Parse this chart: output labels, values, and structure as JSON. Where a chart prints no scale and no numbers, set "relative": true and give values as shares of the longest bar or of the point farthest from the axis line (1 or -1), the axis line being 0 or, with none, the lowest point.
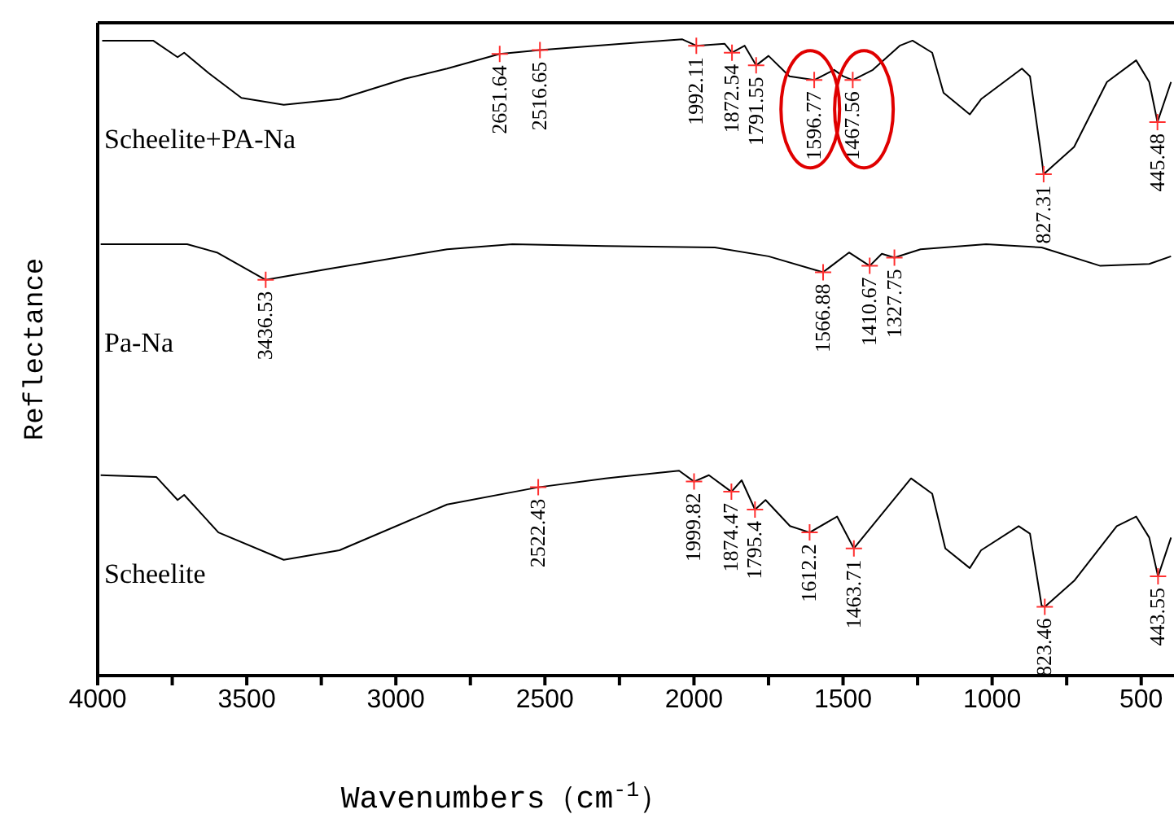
{
  "chart_data": {
    "type": "line",
    "relative": true,
    "xlabel": "Wavenumbers（cm$^{-1}$）",
    "ylabel": "Reflectance",
    "xlim": [
      4000,
      390
    ],
    "xticks": [
      4000,
      {
        "value": 3750,
        "label": null
      },
      3500,
      {
        "value": 3250,
        "label": null
      },
      3000,
      {
        "value": 2750,
        "label": null
      },
      2500,
      {
        "value": 2250,
        "label": null
      },
      2000,
      {
        "value": 1750,
        "label": null
      },
      1500,
      {
        "value": 1250,
        "label": null
      },
      1000,
      {
        "value": 750,
        "label": null
      },
      500
    ],
    "grid": false,
    "legend": false,
    "line_style": "solid",
    "marker": "none",
    "series": [
      {
        "name": "Scheelite+PA-Na",
        "color": "#000000",
        "x": [
          3985,
          3814,
          3732,
          3710,
          3628,
          3518,
          3376,
          3189,
          2970,
          2828,
          2651.64,
          2516.65,
          2242,
          2039,
          1992.11,
          1897,
          1872.54,
          1830,
          1791.55,
          1750,
          1680,
          1596.77,
          1530,
          1500,
          1467.56,
          1400,
          1310,
          1267,
          1201,
          1163,
          1075,
          1037,
          900,
          873,
          834,
          827.31,
          725,
          615,
          517,
          473,
          445.48,
          400
        ],
        "values": [
          0.998,
          0.998,
          0.972,
          0.979,
          0.947,
          0.908,
          0.897,
          0.906,
          0.938,
          0.954,
          0.977,
          0.983,
          0.993,
          1,
          0.99,
          0.993,
          0.979,
          0.99,
          0.959,
          0.974,
          0.942,
          0.936,
          0.952,
          0.942,
          0.936,
          0.952,
          0.99,
          0.998,
          0.979,
          0.916,
          0.882,
          0.906,
          0.954,
          0.942,
          0.813,
          0.788,
          0.831,
          0.933,
          0.967,
          0.933,
          0.87,
          0.933
        ]
      },
      {
        "name": "Pa-Na",
        "color": "#000000",
        "x": [
          3990,
          3700,
          3600,
          3436.53,
          3228,
          2828,
          2609,
          2297,
          1930,
          1750,
          1566.88,
          1480,
          1410.67,
          1370,
          1327.75,
          1240,
          1020,
          834,
          637,
          473,
          400
        ],
        "values": [
          0.678,
          0.678,
          0.665,
          0.622,
          0.639,
          0.67,
          0.678,
          0.675,
          0.673,
          0.659,
          0.634,
          0.665,
          0.644,
          0.663,
          0.657,
          0.67,
          0.678,
          0.673,
          0.644,
          0.647,
          0.659
        ]
      },
      {
        "name": "Scheelite",
        "color": "#000000",
        "x": [
          3990,
          3803,
          3732,
          3710,
          3595,
          3376,
          3189,
          2828,
          2522.43,
          2297,
          2050,
          1999.82,
          1950,
          1874.47,
          1840,
          1795.4,
          1760,
          1678,
          1612.2,
          1520,
          1463.71,
          1272,
          1201,
          1157,
          1075,
          1037,
          911,
          873,
          834,
          823.46,
          725,
          582,
          517,
          473,
          443.55,
          400
        ],
        "values": [
          0.315,
          0.312,
          0.276,
          0.284,
          0.225,
          0.182,
          0.197,
          0.269,
          0.296,
          0.31,
          0.322,
          0.305,
          0.315,
          0.289,
          0.307,
          0.261,
          0.276,
          0.235,
          0.225,
          0.25,
          0.2,
          0.31,
          0.286,
          0.2,
          0.169,
          0.197,
          0.235,
          0.223,
          0.11,
          0.108,
          0.149,
          0.235,
          0.25,
          0.217,
          0.156,
          0.217
        ]
      }
    ],
    "annotations": [
      {
        "text": "2651.64",
        "x": 2651.64,
        "y": 0.977
      },
      {
        "text": "2516.65",
        "x": 2516.65,
        "y": 0.983
      },
      {
        "text": "1992.11",
        "x": 1992.11,
        "y": 0.99
      },
      {
        "text": "1872.54",
        "x": 1872.54,
        "y": 0.979
      },
      {
        "text": "1791.55",
        "x": 1791.55,
        "y": 0.959
      },
      {
        "text": "1596.77",
        "x": 1596.77,
        "y": 0.936
      },
      {
        "text": "1467.56",
        "x": 1467.56,
        "y": 0.936
      },
      {
        "text": "827.31",
        "x": 827.31,
        "y": 0.788
      },
      {
        "text": "445.48",
        "x": 445.48,
        "y": 0.87
      },
      {
        "text": "3436.53",
        "x": 3436.53,
        "y": 0.622
      },
      {
        "text": "1566.88",
        "x": 1566.88,
        "y": 0.634
      },
      {
        "text": "1410.67",
        "x": 1410.67,
        "y": 0.644
      },
      {
        "text": "1327.75",
        "x": 1327.75,
        "y": 0.657
      },
      {
        "text": "2522.43",
        "x": 2522.43,
        "y": 0.296
      },
      {
        "text": "1999.82",
        "x": 1999.82,
        "y": 0.305
      },
      {
        "text": "1874.47",
        "x": 1874.47,
        "y": 0.289
      },
      {
        "text": "1795.4",
        "x": 1795.4,
        "y": 0.261
      },
      {
        "text": "1612.2",
        "x": 1612.2,
        "y": 0.225
      },
      {
        "text": "1463.71",
        "x": 1463.71,
        "y": 0.2
      },
      {
        "text": "823.46",
        "x": 823.46,
        "y": 0.108
      },
      {
        "text": "443.55",
        "x": 443.55,
        "y": 0.156
      }
    ]
  }
}
